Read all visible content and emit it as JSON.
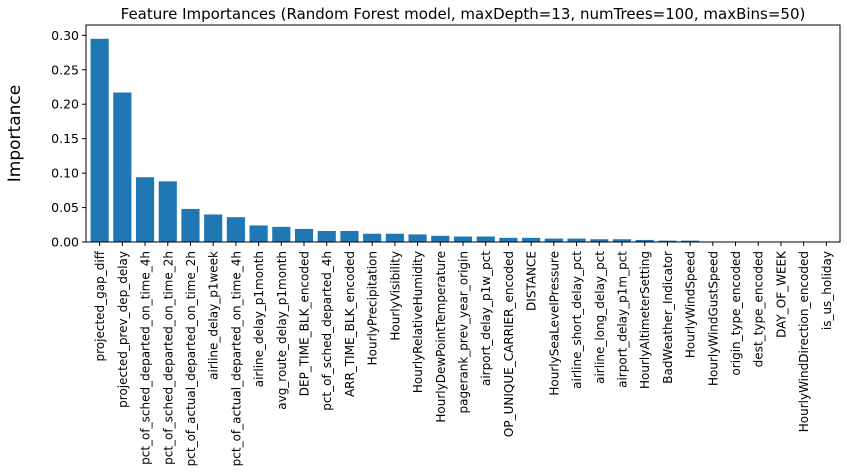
{
  "chart_data": {
    "type": "bar",
    "title": "Feature Importances (Random Forest model, maxDepth=13, numTrees=100, maxBins=50)",
    "xlabel": "",
    "ylabel": "Importance",
    "ylim": [
      0,
      0.315
    ],
    "yticks": [
      0.0,
      0.05,
      0.1,
      0.15,
      0.2,
      0.25,
      0.3
    ],
    "ytick_labels": [
      "0.00",
      "0.05",
      "0.10",
      "0.15",
      "0.20",
      "0.25",
      "0.30"
    ],
    "grid": false,
    "bar_color": "#1f77b4",
    "categories": [
      "projected_gap_diff",
      "projected_prev_dep_delay",
      "pct_of_sched_departed_on_time_4h",
      "pct_of_sched_departed_on_time_2h",
      "pct_of_actual_departed_on_time_2h",
      "airline_delay_p1week",
      "pct_of_actual_departed_on_time_4h",
      "airline_delay_p1month",
      "avg_route_delay_p1month",
      "DEP_TIME_BLK_encoded",
      "pct_of_sched_departed_4h",
      "ARR_TIME_BLK_encoded",
      "HourlyPrecipitation",
      "HourlyVisibility",
      "HourlyRelativeHumidity",
      "HourlyDewPointTemperature",
      "pagerank_prev_year_origin",
      "airport_delay_p1w_pct",
      "OP_UNIQUE_CARRIER_encoded",
      "DISTANCE",
      "HourlySeaLevelPressure",
      "airline_short_delay_pct",
      "airline_long_delay_pct",
      "airport_delay_p1m_pct",
      "HourlyAltimeterSetting",
      "BadWeather_Indicator",
      "HourlyWindSpeed",
      "HourlyWindGustSpeed",
      "origin_type_encoded",
      "dest_type_encoded",
      "DAY_OF_WEEK",
      "HourlyWindDirection_encoded",
      "is_us_holiday"
    ],
    "values": [
      0.295,
      0.217,
      0.094,
      0.088,
      0.048,
      0.04,
      0.036,
      0.024,
      0.022,
      0.019,
      0.016,
      0.016,
      0.012,
      0.012,
      0.011,
      0.009,
      0.008,
      0.008,
      0.006,
      0.006,
      0.005,
      0.005,
      0.004,
      0.004,
      0.003,
      0.002,
      0.002,
      0.0005,
      0.0003,
      0.0003,
      0.0002,
      0.0002,
      0.0001
    ]
  }
}
